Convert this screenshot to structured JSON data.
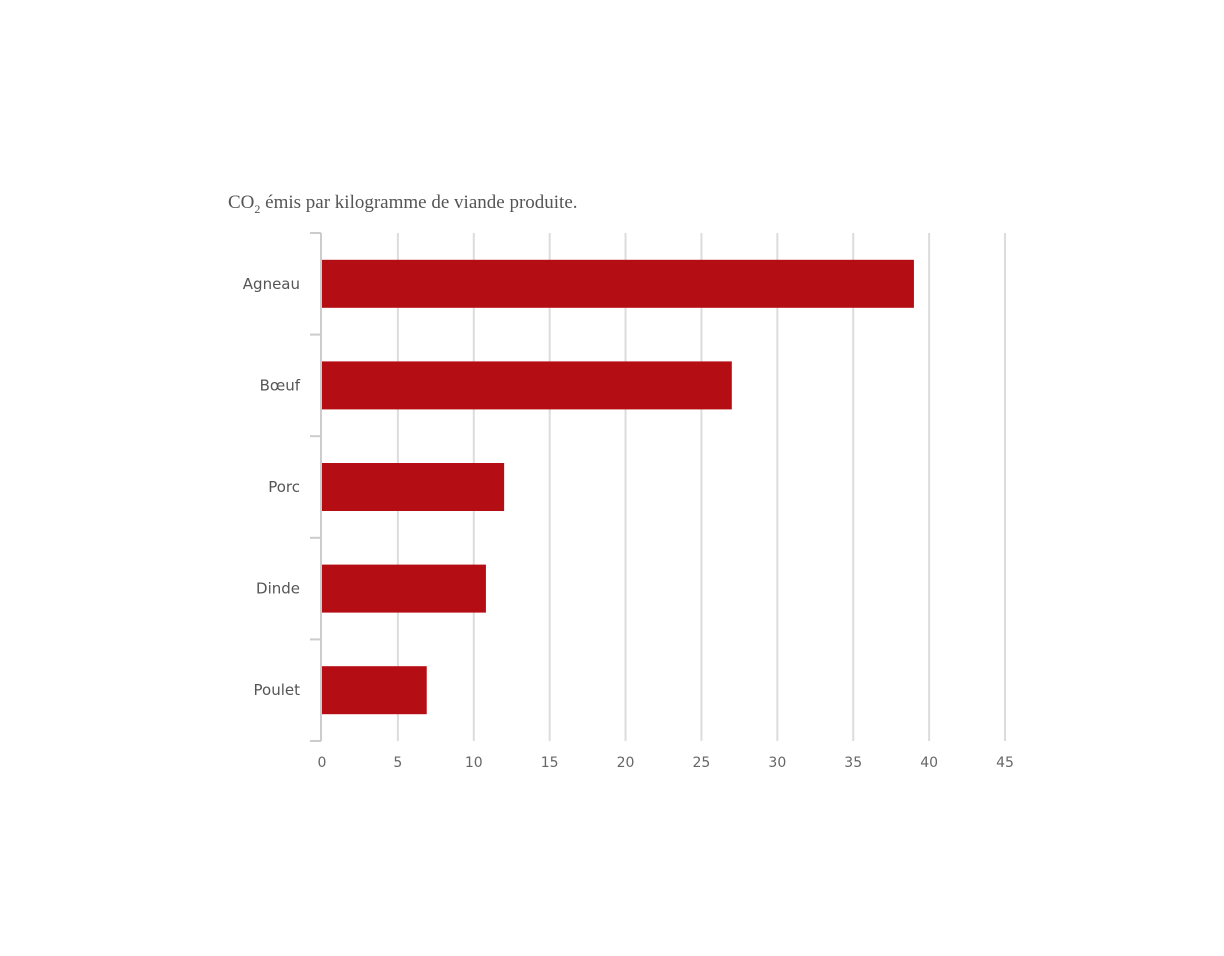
{
  "chart_data": {
    "type": "bar",
    "orientation": "horizontal",
    "title": {
      "prefix": "CO",
      "subscript": "2",
      "suffix": " émis par kilogramme de viande produite."
    },
    "categories": [
      "Agneau",
      "Bœuf",
      "Porc",
      "Dinde",
      "Poulet"
    ],
    "values": [
      39,
      27,
      12,
      10.8,
      6.9
    ],
    "xlim": [
      0,
      45
    ],
    "xticks": [
      0,
      5,
      10,
      15,
      20,
      25,
      30,
      35,
      40,
      45
    ],
    "xlabel": "",
    "ylabel": "",
    "grid": true,
    "legend": "none",
    "bar_color": "#b50d14",
    "grid_color": "#dcdcdc",
    "axis_color": "#cccccc"
  }
}
